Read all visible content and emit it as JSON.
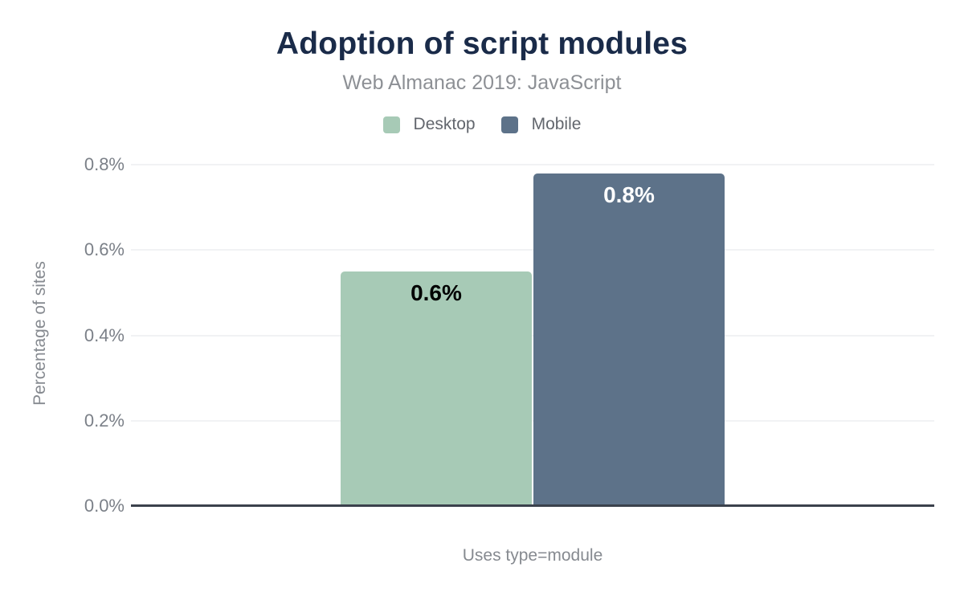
{
  "header": {
    "title": "Adoption of script modules",
    "subtitle": "Web Almanac 2019: JavaScript"
  },
  "legend": {
    "items": [
      {
        "label": "Desktop",
        "color": "#a7cab6"
      },
      {
        "label": "Mobile",
        "color": "#5d7289"
      }
    ]
  },
  "axes": {
    "y_title": "Percentage of sites",
    "x_title": "Uses type=module"
  },
  "chart_data": {
    "type": "bar",
    "title": "Adoption of script modules",
    "subtitle": "Web Almanac 2019: JavaScript",
    "categories": [
      "Uses type=module"
    ],
    "series": [
      {
        "name": "Desktop",
        "color": "#a7cab6",
        "values": [
          0.55
        ],
        "data_labels": [
          "0.6%"
        ],
        "label_color": "#000000"
      },
      {
        "name": "Mobile",
        "color": "#5d7289",
        "values": [
          0.78
        ],
        "data_labels": [
          "0.8%"
        ],
        "label_color": "#ffffff"
      }
    ],
    "xlabel": "Uses type=module",
    "ylabel": "Percentage of sites",
    "ylim": [
      0,
      0.8
    ],
    "yticks": [
      0.0,
      0.2,
      0.4,
      0.6,
      0.8
    ],
    "ytick_labels": [
      "0.0%",
      "0.2%",
      "0.4%",
      "0.6%",
      "0.8%"
    ],
    "grid": true,
    "legend_position": "top"
  },
  "colors": {
    "title": "#1a2b49",
    "subtitle": "#8d9095",
    "tick": "#7b8088",
    "axis_title": "#868a90",
    "gridline": "#f1f2f4",
    "baseline": "#3b414c",
    "background": "#ffffff"
  }
}
